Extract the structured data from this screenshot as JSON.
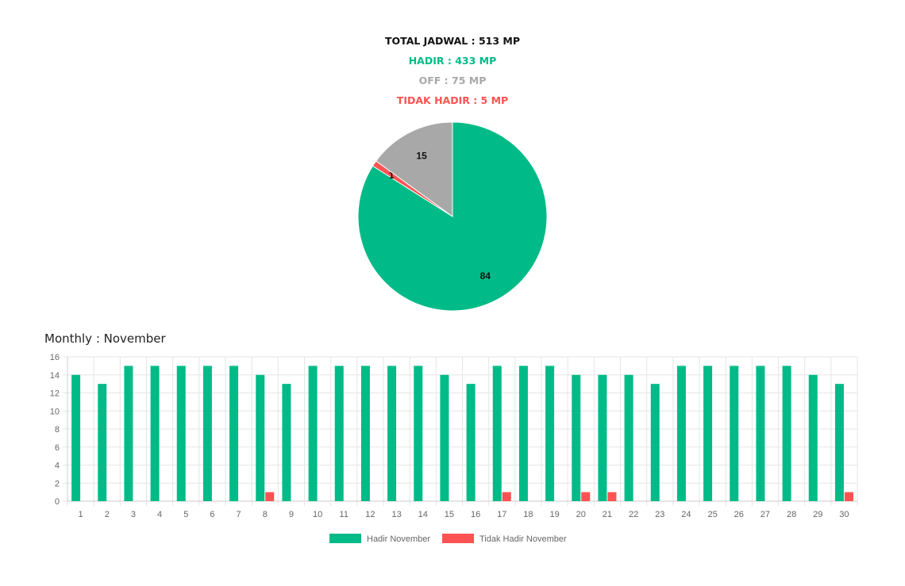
{
  "summary": {
    "total": "TOTAL JADWAL : 513 MP",
    "hadir": "HADIR : 433 MP",
    "off": "OFF : 75 MP",
    "tidak_hadir": "TIDAK HADIR : 5 MP"
  },
  "colors": {
    "hadir": "#00BB87",
    "off": "#A8A8A8",
    "tidak_hadir": "#FF5252",
    "grid": "#E6E6E6"
  },
  "monthly_title": "Monthly : November",
  "chart_data": [
    {
      "type": "pie",
      "slices": [
        {
          "label": "84",
          "value": 84,
          "color": "#00BB87"
        },
        {
          "label": "1",
          "value": 1,
          "color": "#FF5252"
        },
        {
          "label": "15",
          "value": 15,
          "color": "#A8A8A8"
        }
      ]
    },
    {
      "type": "bar",
      "categories": [
        "1",
        "2",
        "3",
        "4",
        "5",
        "6",
        "7",
        "8",
        "9",
        "10",
        "11",
        "12",
        "13",
        "14",
        "15",
        "16",
        "17",
        "18",
        "19",
        "20",
        "21",
        "22",
        "23",
        "24",
        "25",
        "26",
        "27",
        "28",
        "29",
        "30"
      ],
      "series": [
        {
          "name": "Hadir November",
          "color": "#00BB87",
          "values": [
            14,
            13,
            15,
            15,
            15,
            15,
            15,
            14,
            13,
            15,
            15,
            15,
            15,
            15,
            14,
            13,
            15,
            15,
            15,
            14,
            14,
            14,
            13,
            15,
            15,
            15,
            15,
            15,
            14,
            13
          ]
        },
        {
          "name": "Tidak Hadir November",
          "color": "#FF5252",
          "values": [
            0,
            0,
            0,
            0,
            0,
            0,
            0,
            1,
            0,
            0,
            0,
            0,
            0,
            0,
            0,
            0,
            1,
            0,
            0,
            1,
            1,
            0,
            0,
            0,
            0,
            0,
            0,
            0,
            0,
            1
          ]
        }
      ],
      "yticks": [
        "0",
        "2",
        "4",
        "6",
        "8",
        "10",
        "12",
        "14",
        "16"
      ],
      "ylim": [
        0,
        16
      ],
      "grid": true,
      "legend": "bottom"
    }
  ]
}
